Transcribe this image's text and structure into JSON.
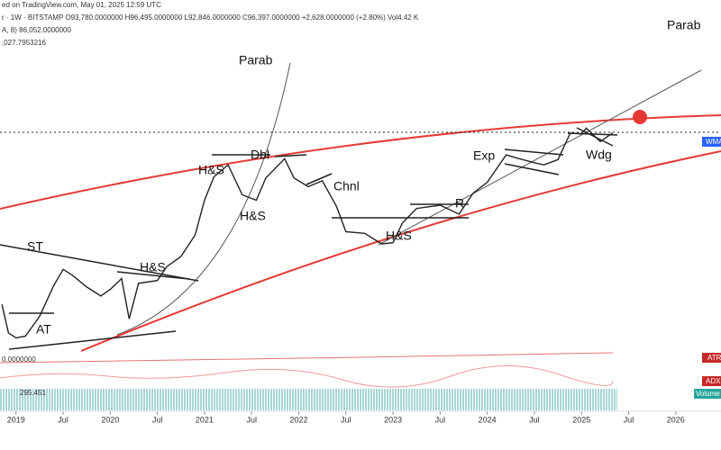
{
  "chart_data": {
    "type": "line",
    "header": [
      "ed on TradingView.com, May 01, 2025 12:59 UTC",
      "r · 1W · BITSTAMP  O93,780.0000000  H96,495.0000000  L92,846.0000000  C96,397.0000000  +2,628.0000000 (+2.80%)  Vol4.42 K",
      "A, 8)  86,052.0000000",
      ",027.7953216"
    ],
    "annotations": [
      "Parab",
      "Parab",
      "H&S",
      "Dbl",
      "H&S",
      "Chnl",
      "Exp",
      "R",
      "Wdg",
      "H&S",
      "ST",
      "H&S",
      "AT"
    ],
    "side_labels": [
      "WMA",
      "ATR",
      "ADX",
      "Volume"
    ],
    "indicator_labels": [
      "0.0000000",
      "295.451"
    ],
    "series": [
      {
        "color": "#222222",
        "x": [
          2018.85,
          2018.92,
          2019.0,
          2019.1,
          2019.25,
          2019.4,
          2019.5,
          2019.6,
          2019.75,
          2019.9,
          2020.0,
          2020.12,
          2020.2,
          2020.3,
          2020.5,
          2020.6,
          2020.75,
          2020.9,
          2021.0,
          2021.1,
          2021.25,
          2021.4,
          2021.55,
          2021.65,
          2021.85,
          2021.95,
          2022.1,
          2022.25,
          2022.4,
          2022.5,
          2022.7,
          2022.88,
          2023.0,
          2023.1,
          2023.25,
          2023.5,
          2023.7,
          2023.85,
          2024.0,
          2024.2,
          2024.3,
          2024.5,
          2024.6,
          2024.75,
          2024.88,
          2025.0,
          2025.05,
          2025.2,
          2025.33
        ],
        "values": [
          6300,
          4000,
          3700,
          3800,
          5200,
          8500,
          11000,
          10000,
          8300,
          7200,
          8000,
          9500,
          5000,
          8800,
          9200,
          11500,
          13500,
          19000,
          33000,
          48000,
          58000,
          36000,
          33000,
          47000,
          64000,
          47000,
          41000,
          45000,
          30000,
          20000,
          19500,
          16500,
          16800,
          23000,
          29000,
          30500,
          26500,
          37000,
          44000,
          68000,
          65000,
          60000,
          58000,
          63000,
          96000,
          95000,
          104000,
          84000,
          96397
        ]
      }
    ],
    "xlim": [
      2018.83,
      2026.48
    ],
    "xticks": [
      2019,
      {
        "value": 2019.5,
        "label": "Jul"
      },
      2020,
      {
        "value": 2020.5,
        "label": "Jul"
      },
      2021,
      {
        "value": 2021.5,
        "label": "Jul"
      },
      2022,
      {
        "value": 2022.5,
        "label": "Jul"
      },
      2023,
      {
        "value": 2023.5,
        "label": "Jul"
      },
      2024,
      {
        "value": 2024.5,
        "label": "Jul"
      },
      2025,
      {
        "value": 2025.5,
        "label": "Jul"
      },
      2026
    ],
    "ylim": [
      3000,
      600000
    ],
    "log_y": true
  }
}
